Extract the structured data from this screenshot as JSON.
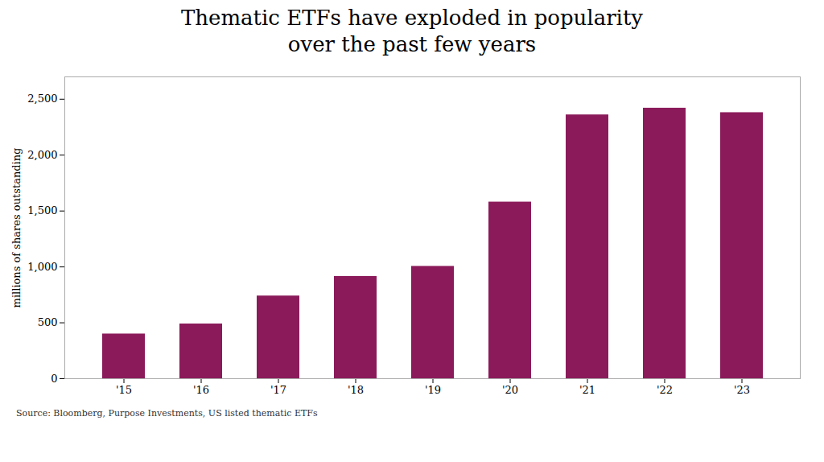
{
  "chart_data": {
    "type": "bar",
    "title": "Thematic ETFs have exploded in popularity\nover the past few years",
    "categories": [
      "'15",
      "'16",
      "'17",
      "'18",
      "'19",
      "'20",
      "'21",
      "'22",
      "'23"
    ],
    "values": [
      400,
      490,
      740,
      915,
      1005,
      1580,
      2360,
      2420,
      2380
    ],
    "color": "#8B1A5A",
    "ylabel": "millions of shares outstanding",
    "ylim": [
      0,
      2700
    ],
    "yticks": [
      0,
      500,
      {
        "value": 1000,
        "label": "1,000"
      },
      {
        "value": 1500,
        "label": "1,500"
      },
      {
        "value": 2000,
        "label": "2,000"
      },
      {
        "value": 2500,
        "label": "2,500"
      }
    ],
    "grid": false,
    "source": "Source: Bloomberg, Purpose Investments, US listed thematic ETFs"
  }
}
